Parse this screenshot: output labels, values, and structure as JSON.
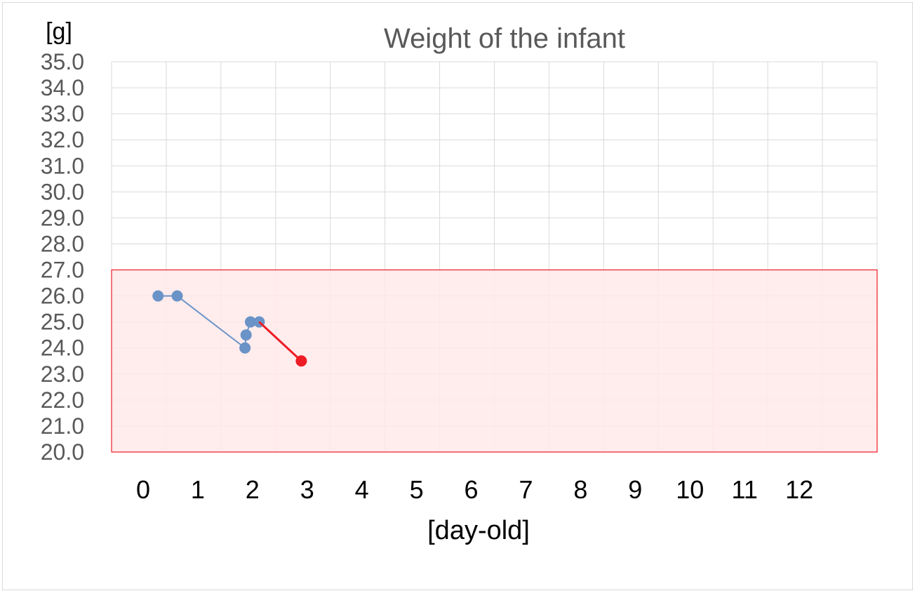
{
  "chart_data": {
    "type": "line",
    "title": "Weight of the infant",
    "ylabel": "[g]",
    "xlabel": "[day-old]",
    "xlim": [
      -0.5,
      13.5
    ],
    "ylim": [
      20,
      35
    ],
    "x_ticks": [
      "0",
      "1",
      "2",
      "3",
      "4",
      "5",
      "6",
      "7",
      "8",
      "9",
      "10",
      "11",
      "12"
    ],
    "y_ticks": [
      "20.0",
      "21.0",
      "22.0",
      "23.0",
      "24.0",
      "25.0",
      "26.0",
      "27.0",
      "28.0",
      "29.0",
      "30.0",
      "31.0",
      "32.0",
      "33.0",
      "34.0",
      "35.0"
    ],
    "grid": true,
    "band": {
      "y_from": 20,
      "y_to": 27,
      "fill": "#ffe9ea",
      "stroke": "#ee1c25"
    },
    "series": [
      {
        "color": "#6a93c7",
        "points": [
          [
            0.35,
            26.0
          ],
          [
            0.7,
            26.0
          ],
          [
            1.94,
            24.0
          ],
          [
            1.96,
            24.5
          ],
          [
            2.04,
            25.0
          ],
          [
            2.2,
            25.0
          ]
        ]
      },
      {
        "color": "#ee1c25",
        "points": [
          [
            2.2,
            25.0
          ],
          [
            2.97,
            23.5
          ]
        ]
      }
    ]
  }
}
